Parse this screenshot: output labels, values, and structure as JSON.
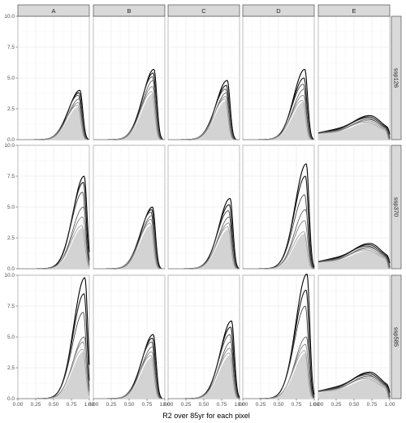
{
  "chart_data": {
    "type": "line",
    "chart_kind": "faceted density plot",
    "xlabel": "R2 over 85yr for each pixel",
    "ylabel": "",
    "xlim": [
      0,
      1
    ],
    "ylim": [
      0,
      10
    ],
    "x_ticks": [
      "0.00",
      "0.25",
      "0.50",
      "0.75",
      "1.00"
    ],
    "y_ticks": [
      "0.0",
      "2.5",
      "5.0",
      "7.5",
      "10.0"
    ],
    "grid": true,
    "columns": [
      "A",
      "B",
      "C",
      "D",
      "E"
    ],
    "rows": [
      "ssp126",
      "ssp370",
      "ssp585"
    ],
    "fill_color": "#d3d3d3",
    "line_colors": [
      "#000000",
      "#1a1a1a",
      "#333333",
      "#555555",
      "#777777",
      "#999999"
    ],
    "panels": [
      {
        "row": "ssp126",
        "col": "A",
        "mode": 0.86,
        "peak": 4.0,
        "series_peaks": [
          4.0,
          3.8,
          3.6,
          3.3,
          3.0,
          2.8
        ]
      },
      {
        "row": "ssp126",
        "col": "B",
        "mode": 0.84,
        "peak": 5.7,
        "series_peaks": [
          5.7,
          5.4,
          5.1,
          4.8,
          4.3,
          3.9
        ]
      },
      {
        "row": "ssp126",
        "col": "C",
        "mode": 0.82,
        "peak": 4.8,
        "series_peaks": [
          4.8,
          4.4,
          4.1,
          3.8,
          3.5,
          3.3
        ]
      },
      {
        "row": "ssp126",
        "col": "D",
        "mode": 0.86,
        "peak": 5.7,
        "series_peaks": [
          5.7,
          5.0,
          4.5,
          4.1,
          3.6,
          3.2
        ]
      },
      {
        "row": "ssp126",
        "col": "E",
        "mode": 0.72,
        "peak": 1.9,
        "series_peaks": [
          1.9,
          1.8,
          1.7,
          1.6,
          1.5,
          1.4
        ]
      },
      {
        "row": "ssp370",
        "col": "A",
        "mode": 0.92,
        "peak": 7.5,
        "series_peaks": [
          7.5,
          7.0,
          6.2,
          5.0,
          4.2,
          3.5
        ]
      },
      {
        "row": "ssp370",
        "col": "B",
        "mode": 0.82,
        "peak": 5.0,
        "series_peaks": [
          5.0,
          4.8,
          4.6,
          4.3,
          4.0,
          3.7
        ]
      },
      {
        "row": "ssp370",
        "col": "C",
        "mode": 0.86,
        "peak": 5.7,
        "series_peaks": [
          5.7,
          5.2,
          4.7,
          4.2,
          3.7,
          3.4
        ]
      },
      {
        "row": "ssp370",
        "col": "D",
        "mode": 0.88,
        "peak": 8.5,
        "series_peaks": [
          8.5,
          7.5,
          6.0,
          4.8,
          3.9,
          3.0
        ]
      },
      {
        "row": "ssp370",
        "col": "E",
        "mode": 0.72,
        "peak": 2.0,
        "series_peaks": [
          2.0,
          1.9,
          1.8,
          1.7,
          1.6,
          1.5
        ]
      },
      {
        "row": "ssp585",
        "col": "A",
        "mode": 0.93,
        "peak": 9.8,
        "series_peaks": [
          9.8,
          8.5,
          7.0,
          5.0,
          4.6,
          4.0
        ]
      },
      {
        "row": "ssp585",
        "col": "B",
        "mode": 0.83,
        "peak": 5.2,
        "series_peaks": [
          5.2,
          4.9,
          4.6,
          4.2,
          3.8,
          3.5
        ]
      },
      {
        "row": "ssp585",
        "col": "C",
        "mode": 0.88,
        "peak": 6.3,
        "series_peaks": [
          6.3,
          5.8,
          5.2,
          4.6,
          4.1,
          3.7
        ]
      },
      {
        "row": "ssp585",
        "col": "D",
        "mode": 0.89,
        "peak": 10.1,
        "series_peaks": [
          10.1,
          8.8,
          7.5,
          5.0,
          4.4,
          3.9
        ]
      },
      {
        "row": "ssp585",
        "col": "E",
        "mode": 0.72,
        "peak": 2.1,
        "series_peaks": [
          2.1,
          2.0,
          1.9,
          1.8,
          1.7,
          1.6
        ]
      }
    ]
  }
}
